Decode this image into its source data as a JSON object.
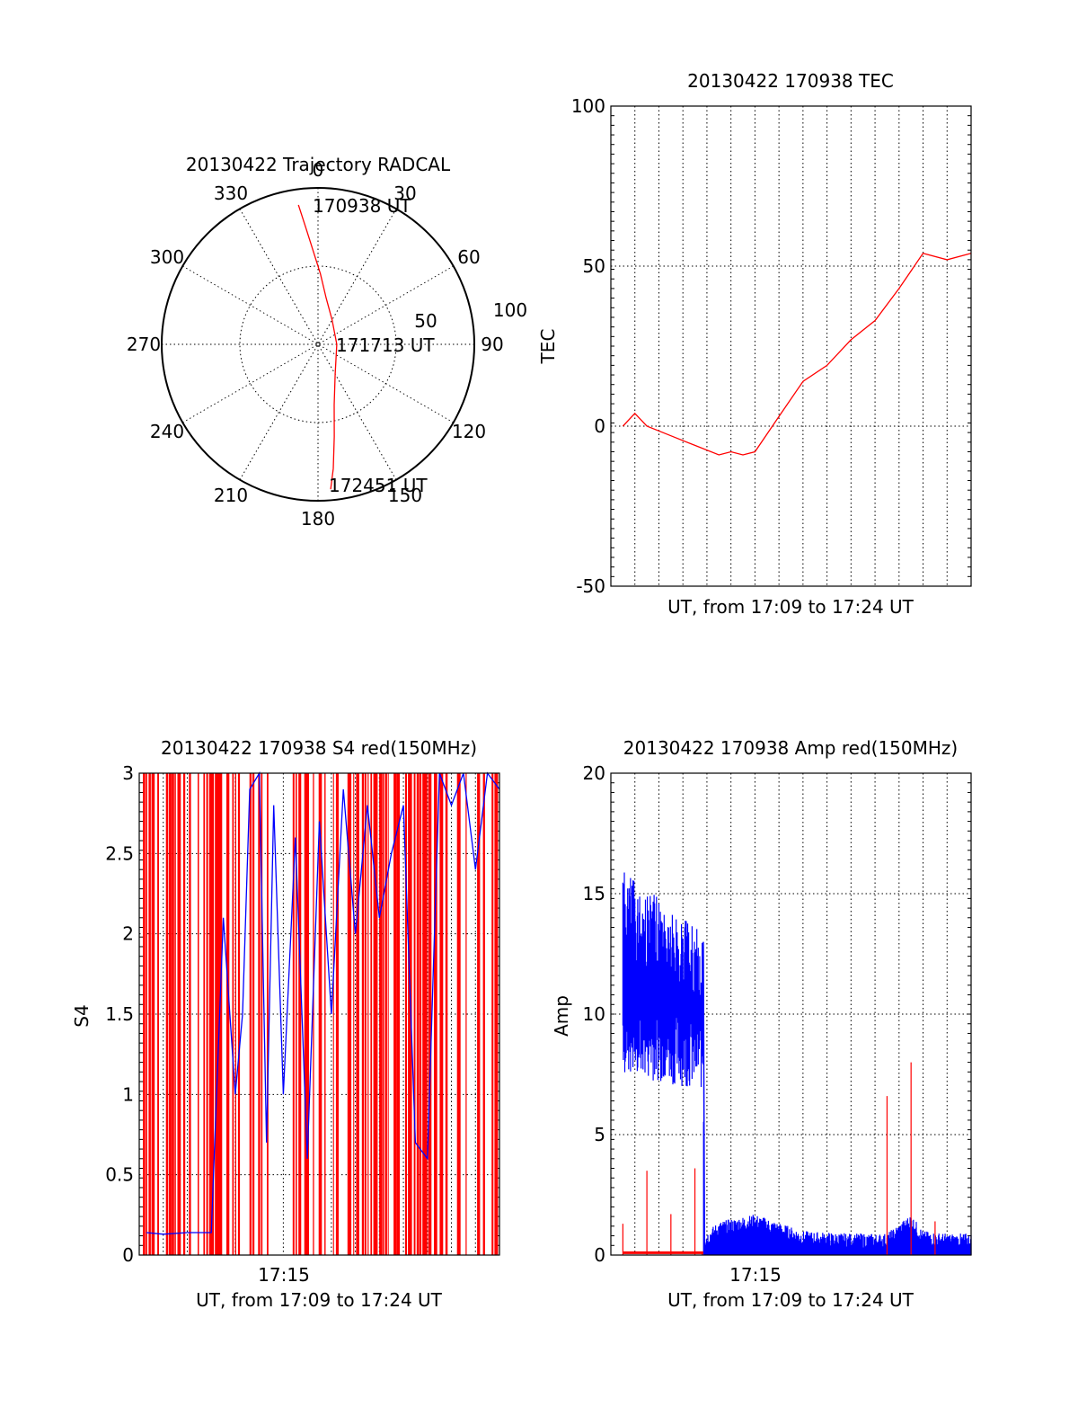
{
  "colors": {
    "red": "#ff0000",
    "blue": "#0000ff",
    "axis": "#000000",
    "grid": "#000000"
  },
  "chart_data": [
    {
      "type": "polar",
      "title": "20130422 Trajectory RADCAL",
      "angle_labels": [
        "0",
        "30",
        "60",
        "90",
        "120",
        "150",
        "180",
        "210",
        "240",
        "270",
        "300",
        "330"
      ],
      "radius_labels": [
        "50",
        "100"
      ],
      "r_max": 100,
      "annotations": [
        "170938 UT",
        "171713 UT",
        "172451 UT"
      ],
      "series": [
        {
          "color": "red",
          "points": [
            {
              "az": 352,
              "r": 90
            },
            {
              "az": 354,
              "r": 75
            },
            {
              "az": 357,
              "r": 60
            },
            {
              "az": 2,
              "r": 45
            },
            {
              "az": 10,
              "r": 30
            },
            {
              "az": 30,
              "r": 18
            },
            {
              "az": 90,
              "r": 12
            },
            {
              "az": 150,
              "r": 22
            },
            {
              "az": 165,
              "r": 40
            },
            {
              "az": 170,
              "r": 60
            },
            {
              "az": 173,
              "r": 80
            },
            {
              "az": 175,
              "r": 93
            }
          ]
        }
      ]
    },
    {
      "type": "line",
      "title": "20130422 170938 TEC",
      "xlabel": "UT, from 17:09 to 17:24 UT",
      "ylabel": "TEC",
      "ylim": [
        -50,
        100
      ],
      "yticks": [
        "-50",
        "0",
        "50",
        "100"
      ],
      "xlim_minutes": [
        0,
        15
      ],
      "grid": true,
      "series": [
        {
          "color": "red",
          "x": [
            0.5,
            1.0,
            1.5,
            2.5,
            3.5,
            4.5,
            5.0,
            5.5,
            6.0,
            7.0,
            8.0,
            9.0,
            10.0,
            11.0,
            12.0,
            13.0,
            14.0,
            15.0
          ],
          "y": [
            0,
            4,
            0,
            -3,
            -6,
            -9,
            -8,
            -9,
            -8,
            3,
            14,
            19,
            27,
            33,
            43,
            54,
            52,
            54
          ]
        }
      ]
    },
    {
      "type": "line",
      "title": "20130422 170938 S4 red(150MHz)",
      "xlabel": "UT, from 17:09 to 17:24 UT",
      "ylabel": "S4",
      "ylim": [
        0,
        3
      ],
      "yticks": [
        "0",
        "0.5",
        "1",
        "1.5",
        "2",
        "2.5",
        "3"
      ],
      "xticks": [
        "17:15"
      ],
      "xlim_minutes": [
        0,
        15
      ],
      "grid": true,
      "series": [
        {
          "color": "blue",
          "x": [
            0.3,
            1.0,
            2.0,
            3.0,
            3.5,
            4.0,
            4.3,
            4.6,
            5.0,
            5.3,
            5.6,
            6.0,
            6.5,
            7.0,
            7.5,
            8.0,
            8.5,
            9.0,
            9.5,
            10.0,
            10.5,
            11.0,
            11.5,
            12.0,
            12.5,
            13.0,
            13.5,
            14.0,
            14.5,
            15.0
          ],
          "y": [
            0.14,
            0.13,
            0.14,
            0.14,
            2.1,
            1.0,
            1.5,
            2.9,
            3.0,
            0.7,
            2.8,
            1.0,
            2.6,
            0.6,
            2.7,
            1.5,
            2.9,
            2.0,
            2.8,
            2.1,
            2.5,
            2.8,
            0.7,
            0.6,
            3.0,
            2.8,
            3.0,
            2.4,
            3.0,
            2.9
          ]
        }
      ]
    },
    {
      "type": "line",
      "title": "20130422 170938 Amp red(150MHz)",
      "xlabel": "UT, from 17:09 to 17:24 UT",
      "ylabel": "Amp",
      "ylim": [
        0,
        20
      ],
      "yticks": [
        "0",
        "5",
        "10",
        "15",
        "20"
      ],
      "xticks": [
        "17:15"
      ],
      "xlim_minutes": [
        0,
        15
      ],
      "grid": true,
      "series": [
        {
          "color": "blue",
          "x": [
            0.5,
            1.0,
            1.5,
            2.0,
            2.5,
            3.0,
            3.5,
            3.8,
            3.9,
            4.5,
            6.0,
            8.0,
            10.0,
            11.5,
            12.5,
            13.0,
            14.0,
            15.0
          ],
          "y": [
            9,
            16,
            7,
            15,
            7,
            14,
            7,
            13,
            0.3,
            0.8,
            1.1,
            0.4,
            0.3,
            0.3,
            1.1,
            0.4,
            0.3,
            0.3
          ]
        },
        {
          "color": "red",
          "x": [
            0.5,
            1.5,
            2.5,
            3.5,
            3.8,
            11.5,
            12.5,
            13.5
          ],
          "y": [
            1.3,
            3.5,
            1.7,
            3.6,
            0.1,
            6.6,
            8.0,
            1.4
          ]
        }
      ]
    }
  ]
}
